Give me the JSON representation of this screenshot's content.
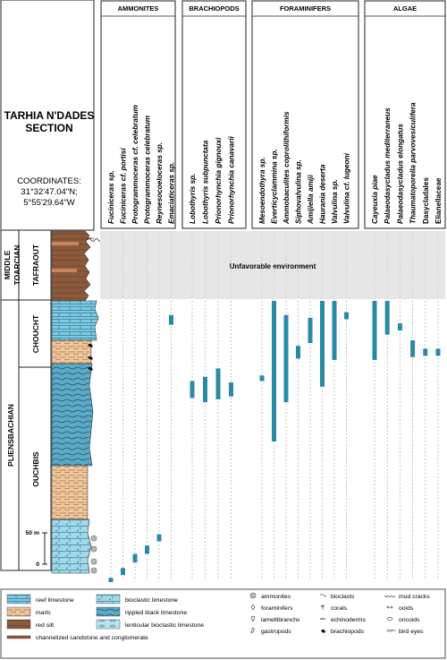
{
  "section": {
    "title_line1": "TARHIA N'DADES",
    "title_line2": "SECTION",
    "coord_label": "COORDINATES:",
    "coord_lat": "31°32'47.04\"N;",
    "coord_lon": "5°55'29.64\"W"
  },
  "strat": {
    "middle_toarcian": "MIDDLE\nTOARCIAN",
    "tafraout": "TAFRAOUT",
    "pliensbachian": "PLIENSBACHIAN",
    "choucht": "CHOUCHT",
    "ouchbis": "OUCHBIS"
  },
  "unfavorable": "Unfavorable environment",
  "scale": {
    "top": "50 m",
    "bottom": "0"
  },
  "groups": [
    {
      "name": "AMMONITES",
      "taxa": [
        {
          "name": "Fuciniceras sp.",
          "italic": true,
          "range": [
            0.985,
            1.0
          ]
        },
        {
          "name": "Fuciniceras cf. portisi",
          "italic": true,
          "range": [
            0.95,
            0.975
          ]
        },
        {
          "name": "Protogrammoceras cf. celebratum",
          "italic": true,
          "range": [
            0.9,
            0.93
          ]
        },
        {
          "name": "Protogrammoceras celebratum",
          "italic": true,
          "range": [
            0.87,
            0.9
          ]
        },
        {
          "name": "Reynesocoeloceras sp.",
          "italic": true,
          "range": [
            0.83,
            0.855
          ]
        },
        {
          "name": "Emaciaticeras sp.",
          "italic": true,
          "range": [
            0.05,
            0.085
          ]
        }
      ]
    },
    {
      "name": "BRACHIOPODS",
      "taxa": [
        {
          "name": "Lobothyris sp.",
          "italic": true,
          "range": [
            0.285,
            0.345
          ]
        },
        {
          "name": "Lobothyris subpunctata",
          "italic": true,
          "range": [
            0.27,
            0.36
          ]
        },
        {
          "name": "Prionorhynchia gignouxi",
          "italic": true,
          "range": [
            0.24,
            0.35
          ]
        },
        {
          "name": "Prionorhynchia canavarii",
          "italic": true,
          "range": [
            0.29,
            0.34
          ]
        }
      ]
    },
    {
      "name": "FORAMINIFERS",
      "taxa": [
        {
          "name": "Mesoendothyra sp.",
          "italic": true,
          "range": [
            0.265,
            0.285
          ]
        },
        {
          "name": "Everticyclammina sp.",
          "italic": true,
          "range": [
            0.0,
            0.5
          ]
        },
        {
          "name": "Ammobaculites coprolithiformis",
          "italic": true,
          "range": [
            0.05,
            0.36
          ]
        },
        {
          "name": "Siphovalvulina sp.",
          "italic": true,
          "range": [
            0.16,
            0.205
          ]
        },
        {
          "name": "Amijiella amiji",
          "italic": true,
          "range": [
            0.06,
            0.15
          ]
        },
        {
          "name": "Haurania deserta",
          "italic": true,
          "range": [
            0.0,
            0.305
          ]
        },
        {
          "name": "Valvulina sp.",
          "italic": true,
          "range": [
            0.0,
            0.21
          ]
        },
        {
          "name": "Valvulina cf. lugeoni",
          "italic": true,
          "range": [
            0.04,
            0.065
          ]
        }
      ]
    },
    {
      "name": "ALGAE",
      "taxa": [
        {
          "name": "Cayeuxia piae",
          "italic": true,
          "range": [
            0.0,
            0.21
          ]
        },
        {
          "name": "Palaeodasycladus mediterraneus",
          "italic": true,
          "range": [
            0.0,
            0.12
          ]
        },
        {
          "name": "Palaeodasycladus elongatus",
          "italic": true,
          "range": [
            0.08,
            0.105
          ]
        },
        {
          "name": "Thaumatoporella parvovesiculifera",
          "italic": true,
          "range": [
            0.14,
            0.2
          ]
        },
        {
          "name": "Dasycladales",
          "italic": false,
          "range": [
            0.17,
            0.195
          ]
        },
        {
          "name": "Elianellaceae",
          "italic": false,
          "range": [
            0.17,
            0.195
          ]
        }
      ]
    }
  ],
  "legend": {
    "lithology": [
      {
        "label": "reef limestone",
        "pattern": "reef"
      },
      {
        "label": "marls",
        "pattern": "marl"
      },
      {
        "label": "red silt",
        "pattern": "silt"
      },
      {
        "label": "channelized sandstone and conglomerate",
        "pattern": "sand"
      }
    ],
    "lithology2": [
      {
        "label": "bioclastic limestone",
        "pattern": "bioclastic"
      },
      {
        "label": "rippled black limestone",
        "pattern": "rippled"
      },
      {
        "label": "lenticular bioclastic limestone",
        "pattern": "lenticular"
      }
    ],
    "fossils1": [
      {
        "label": "ammonites",
        "symbol": "ammonite-icon"
      },
      {
        "label": "foraminifers",
        "symbol": "foraminifer-icon"
      },
      {
        "label": "lamellibranchs",
        "symbol": "lamellibranch-icon"
      },
      {
        "label": "gastropods",
        "symbol": "gastropod-icon"
      }
    ],
    "fossils2": [
      {
        "label": "bioclasts",
        "symbol": "bioclast-icon"
      },
      {
        "label": "corals",
        "symbol": "coral-icon"
      },
      {
        "label": "echinoderms",
        "symbol": "echinoderm-icon"
      },
      {
        "label": "brachiopods",
        "symbol": "brachiopod-icon"
      }
    ],
    "features": [
      {
        "label": "mud cracks",
        "symbol": "mud-crack-icon"
      },
      {
        "label": "ooids",
        "symbol": "ooid-icon"
      },
      {
        "label": "oncoids",
        "symbol": "oncoid-icon"
      },
      {
        "label": "bird eyes",
        "symbol": "bird-eye-icon"
      }
    ]
  },
  "colors": {
    "range_bar": "#2a8aa6",
    "reef": "#7ccbe6",
    "marl": "#f0c79a",
    "silt": "#8b5a3c",
    "unfavorable": "#e6e6e6"
  }
}
